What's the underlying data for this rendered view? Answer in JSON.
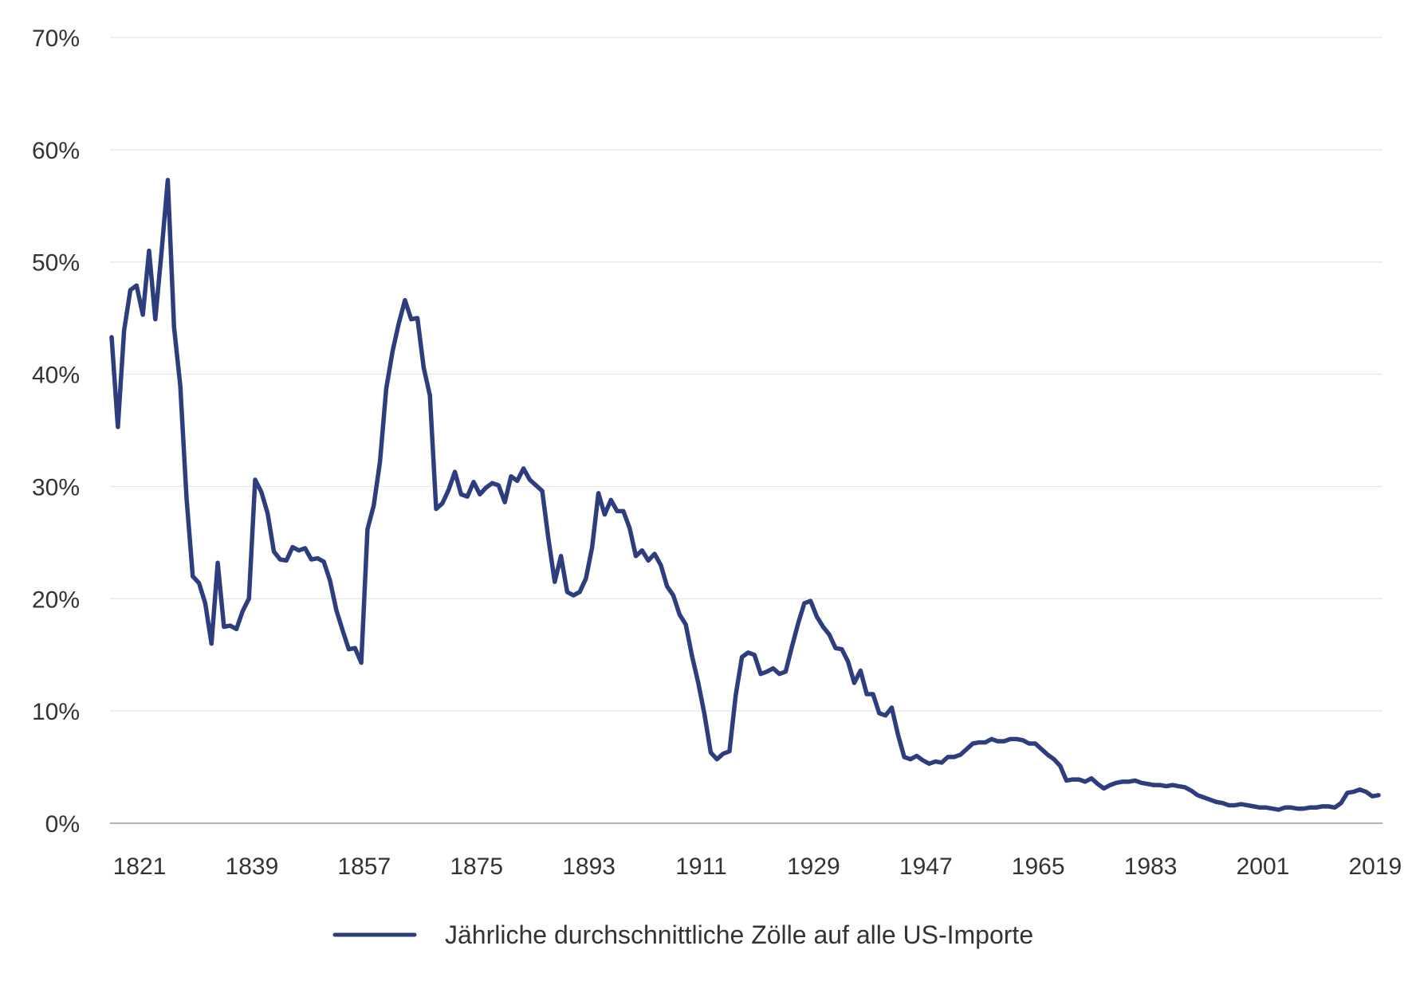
{
  "chart_data": {
    "type": "line",
    "title": "",
    "xlabel": "",
    "ylabel": "",
    "xlim": [
      1821,
      2024
    ],
    "ylim": [
      0,
      70
    ],
    "grid": true,
    "legend_position": "bottom-center",
    "x_ticks": [
      {
        "value": 1821,
        "label": "1821"
      },
      {
        "value": 1839,
        "label": "1839"
      },
      {
        "value": 1857,
        "label": "1857"
      },
      {
        "value": 1875,
        "label": "1875"
      },
      {
        "value": 1893,
        "label": "1893"
      },
      {
        "value": 1911,
        "label": "1911"
      },
      {
        "value": 1929,
        "label": "1929"
      },
      {
        "value": 1947,
        "label": "1947"
      },
      {
        "value": 1965,
        "label": "1965"
      },
      {
        "value": 1983,
        "label": "1983"
      },
      {
        "value": 2001,
        "label": "2001"
      },
      {
        "value": 2019,
        "label": "2019"
      }
    ],
    "y_ticks": [
      {
        "value": 0,
        "label": "0%"
      },
      {
        "value": 10,
        "label": "10%"
      },
      {
        "value": 20,
        "label": "20%"
      },
      {
        "value": 30,
        "label": "30%"
      },
      {
        "value": 40,
        "label": "40%"
      },
      {
        "value": 50,
        "label": "50%"
      },
      {
        "value": 60,
        "label": "60%"
      },
      {
        "value": 70,
        "label": "70%"
      }
    ],
    "colors": {
      "series": "#2e3d7e",
      "grid": "#e6e6e6",
      "axis": "#999999"
    },
    "series": [
      {
        "name": "Jährliche durchschnittliche Zölle auf alle US-Importe",
        "points": [
          [
            1821,
            43.3
          ],
          [
            1822,
            35.3
          ],
          [
            1823,
            43.9
          ],
          [
            1824,
            47.5
          ],
          [
            1825,
            47.9
          ],
          [
            1826,
            45.3
          ],
          [
            1827,
            51.0
          ],
          [
            1828,
            44.9
          ],
          [
            1829,
            50.9
          ],
          [
            1830,
            57.3
          ],
          [
            1831,
            44.2
          ],
          [
            1832,
            39.0
          ],
          [
            1833,
            29.0
          ],
          [
            1834,
            22.0
          ],
          [
            1835,
            21.4
          ],
          [
            1836,
            19.6
          ],
          [
            1837,
            16.0
          ],
          [
            1838,
            23.2
          ],
          [
            1839,
            17.5
          ],
          [
            1840,
            17.6
          ],
          [
            1841,
            17.3
          ],
          [
            1842,
            18.9
          ],
          [
            1843,
            20.0
          ],
          [
            1844,
            30.6
          ],
          [
            1845,
            29.5
          ],
          [
            1846,
            27.6
          ],
          [
            1847,
            24.2
          ],
          [
            1848,
            23.5
          ],
          [
            1849,
            23.4
          ],
          [
            1850,
            24.6
          ],
          [
            1851,
            24.3
          ],
          [
            1852,
            24.5
          ],
          [
            1853,
            23.5
          ],
          [
            1854,
            23.6
          ],
          [
            1855,
            23.3
          ],
          [
            1856,
            21.6
          ],
          [
            1857,
            19.0
          ],
          [
            1858,
            17.2
          ],
          [
            1859,
            15.5
          ],
          [
            1860,
            15.6
          ],
          [
            1861,
            14.3
          ],
          [
            1862,
            26.2
          ],
          [
            1863,
            28.3
          ],
          [
            1864,
            32.2
          ],
          [
            1865,
            38.7
          ],
          [
            1866,
            42.0
          ],
          [
            1867,
            44.5
          ],
          [
            1868,
            46.6
          ],
          [
            1869,
            44.9
          ],
          [
            1870,
            45.0
          ],
          [
            1871,
            40.6
          ],
          [
            1872,
            38.1
          ],
          [
            1873,
            28.0
          ],
          [
            1874,
            28.5
          ],
          [
            1875,
            29.7
          ],
          [
            1876,
            31.3
          ],
          [
            1877,
            29.3
          ],
          [
            1878,
            29.1
          ],
          [
            1879,
            30.4
          ],
          [
            1880,
            29.3
          ],
          [
            1881,
            29.9
          ],
          [
            1882,
            30.3
          ],
          [
            1883,
            30.1
          ],
          [
            1884,
            28.6
          ],
          [
            1885,
            30.9
          ],
          [
            1886,
            30.5
          ],
          [
            1887,
            31.6
          ],
          [
            1888,
            30.6
          ],
          [
            1889,
            30.1
          ],
          [
            1890,
            29.6
          ],
          [
            1891,
            25.3
          ],
          [
            1892,
            21.5
          ],
          [
            1893,
            23.8
          ],
          [
            1894,
            20.6
          ],
          [
            1895,
            20.3
          ],
          [
            1896,
            20.6
          ],
          [
            1897,
            21.8
          ],
          [
            1898,
            24.6
          ],
          [
            1899,
            29.4
          ],
          [
            1900,
            27.5
          ],
          [
            1901,
            28.8
          ],
          [
            1902,
            27.8
          ],
          [
            1903,
            27.8
          ],
          [
            1904,
            26.3
          ],
          [
            1905,
            23.8
          ],
          [
            1906,
            24.3
          ],
          [
            1907,
            23.4
          ],
          [
            1908,
            24.0
          ],
          [
            1909,
            23.0
          ],
          [
            1910,
            21.1
          ],
          [
            1911,
            20.3
          ],
          [
            1912,
            18.6
          ],
          [
            1913,
            17.7
          ],
          [
            1914,
            14.9
          ],
          [
            1915,
            12.5
          ],
          [
            1916,
            9.7
          ],
          [
            1917,
            6.3
          ],
          [
            1918,
            5.7
          ],
          [
            1919,
            6.2
          ],
          [
            1920,
            6.4
          ],
          [
            1921,
            11.4
          ],
          [
            1922,
            14.8
          ],
          [
            1923,
            15.2
          ],
          [
            1924,
            15.0
          ],
          [
            1925,
            13.3
          ],
          [
            1926,
            13.5
          ],
          [
            1927,
            13.8
          ],
          [
            1928,
            13.3
          ],
          [
            1929,
            13.5
          ],
          [
            1930,
            15.7
          ],
          [
            1931,
            17.8
          ],
          [
            1932,
            19.6
          ],
          [
            1933,
            19.8
          ],
          [
            1934,
            18.4
          ],
          [
            1935,
            17.5
          ],
          [
            1936,
            16.8
          ],
          [
            1937,
            15.6
          ],
          [
            1938,
            15.5
          ],
          [
            1939,
            14.4
          ],
          [
            1940,
            12.5
          ],
          [
            1941,
            13.6
          ],
          [
            1942,
            11.5
          ],
          [
            1943,
            11.5
          ],
          [
            1944,
            9.8
          ],
          [
            1945,
            9.6
          ],
          [
            1946,
            10.3
          ],
          [
            1947,
            7.9
          ],
          [
            1948,
            5.9
          ],
          [
            1949,
            5.7
          ],
          [
            1950,
            6.0
          ],
          [
            1951,
            5.6
          ],
          [
            1952,
            5.3
          ],
          [
            1953,
            5.5
          ],
          [
            1954,
            5.4
          ],
          [
            1955,
            5.9
          ],
          [
            1956,
            5.9
          ],
          [
            1957,
            6.1
          ],
          [
            1958,
            6.6
          ],
          [
            1959,
            7.1
          ],
          [
            1960,
            7.2
          ],
          [
            1961,
            7.2
          ],
          [
            1962,
            7.5
          ],
          [
            1963,
            7.3
          ],
          [
            1964,
            7.3
          ],
          [
            1965,
            7.5
          ],
          [
            1966,
            7.5
          ],
          [
            1967,
            7.4
          ],
          [
            1968,
            7.1
          ],
          [
            1969,
            7.1
          ],
          [
            1970,
            6.6
          ],
          [
            1971,
            6.1
          ],
          [
            1972,
            5.7
          ],
          [
            1973,
            5.1
          ],
          [
            1974,
            3.8
          ],
          [
            1975,
            3.9
          ],
          [
            1976,
            3.9
          ],
          [
            1977,
            3.7
          ],
          [
            1978,
            4.0
          ],
          [
            1979,
            3.5
          ],
          [
            1980,
            3.1
          ],
          [
            1981,
            3.4
          ],
          [
            1982,
            3.6
          ],
          [
            1983,
            3.7
          ],
          [
            1984,
            3.7
          ],
          [
            1985,
            3.8
          ],
          [
            1986,
            3.6
          ],
          [
            1987,
            3.5
          ],
          [
            1988,
            3.4
          ],
          [
            1989,
            3.4
          ],
          [
            1990,
            3.3
          ],
          [
            1991,
            3.4
          ],
          [
            1992,
            3.3
          ],
          [
            1993,
            3.2
          ],
          [
            1994,
            2.9
          ],
          [
            1995,
            2.5
          ],
          [
            1996,
            2.3
          ],
          [
            1997,
            2.1
          ],
          [
            1998,
            1.9
          ],
          [
            1999,
            1.8
          ],
          [
            2000,
            1.6
          ],
          [
            2001,
            1.6
          ],
          [
            2002,
            1.7
          ],
          [
            2003,
            1.6
          ],
          [
            2004,
            1.5
          ],
          [
            2005,
            1.4
          ],
          [
            2006,
            1.4
          ],
          [
            2007,
            1.3
          ],
          [
            2008,
            1.2
          ],
          [
            2009,
            1.4
          ],
          [
            2010,
            1.4
          ],
          [
            2011,
            1.3
          ],
          [
            2012,
            1.3
          ],
          [
            2013,
            1.4
          ],
          [
            2014,
            1.4
          ],
          [
            2015,
            1.5
          ],
          [
            2016,
            1.5
          ],
          [
            2017,
            1.4
          ],
          [
            2018,
            1.8
          ],
          [
            2019,
            2.7
          ],
          [
            2020,
            2.8
          ],
          [
            2021,
            3.0
          ],
          [
            2022,
            2.8
          ],
          [
            2023,
            2.4
          ],
          [
            2024,
            2.5
          ]
        ]
      }
    ]
  }
}
